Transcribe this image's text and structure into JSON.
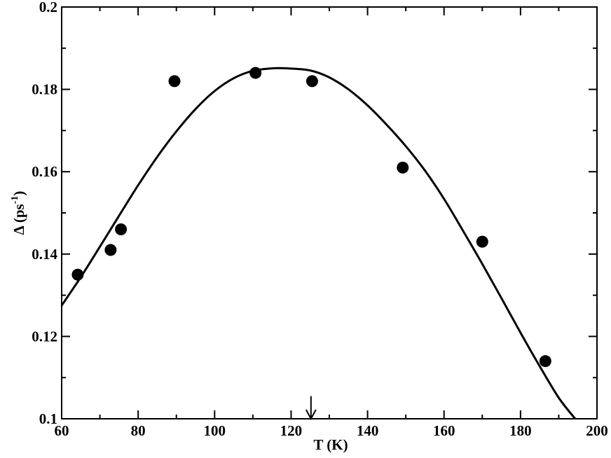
{
  "chart_data": {
    "type": "scatter",
    "title": "",
    "xlabel": "T (K)",
    "ylabel": {
      "main": "Δ (ps",
      "sup": "-1",
      "close": ")"
    },
    "xlim": [
      60,
      200
    ],
    "ylim": [
      0.1,
      0.2
    ],
    "x_ticks": [
      60,
      80,
      100,
      120,
      140,
      160,
      180,
      200
    ],
    "x_tick_labels": [
      "60",
      "80",
      "100",
      "120",
      "140",
      "160",
      "180",
      "200"
    ],
    "y_ticks": [
      0.1,
      0.12,
      0.14,
      0.16,
      0.18,
      0.2
    ],
    "y_tick_labels": [
      "0.1",
      "0.12",
      "0.14",
      "0.16",
      "0.18",
      "0.2"
    ],
    "x_minor_ticks": [
      70,
      90,
      110,
      130,
      150,
      170,
      190
    ],
    "y_minor_ticks": [
      0.11,
      0.13,
      0.15,
      0.17,
      0.19
    ],
    "grid": false,
    "series": [
      {
        "kind": "points",
        "marker": "filled-circle",
        "color": "#000000",
        "x": [
          64.2,
          72.8,
          75.5,
          89.5,
          110.7,
          125.5,
          149.2,
          170.0,
          186.5
        ],
        "y": [
          0.135,
          0.141,
          0.146,
          0.182,
          0.184,
          0.182,
          0.161,
          0.143,
          0.114
        ]
      },
      {
        "kind": "fit-line",
        "color": "#000000",
        "x": [
          60,
          65,
          70,
          75,
          80,
          85,
          90,
          95,
          100,
          105,
          110,
          115,
          119,
          125,
          130,
          135,
          140,
          145,
          150,
          155,
          160,
          165,
          170,
          175,
          180,
          185,
          190,
          194.3
        ],
        "y": [
          0.1275,
          0.1344,
          0.1418,
          0.1493,
          0.1567,
          0.1636,
          0.1698,
          0.1752,
          0.1796,
          0.1827,
          0.1845,
          0.1851,
          0.1851,
          0.1846,
          0.1829,
          0.18,
          0.1761,
          0.1714,
          0.1662,
          0.1603,
          0.1534,
          0.1456,
          0.1376,
          0.1293,
          0.1209,
          0.1128,
          0.1051,
          0.1
        ]
      }
    ],
    "annotations": [
      {
        "kind": "arrow-down",
        "x": 125.2,
        "y_from": 0.1055,
        "y_to": 0.1
      }
    ]
  }
}
